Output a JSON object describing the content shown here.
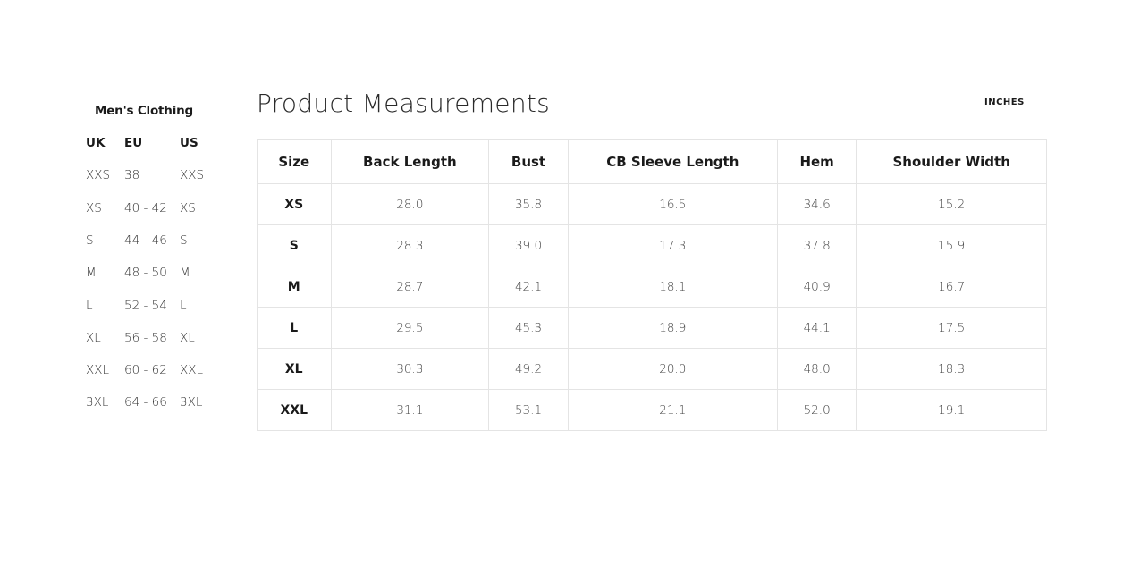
{
  "sidebar": {
    "title": "Men's Clothing",
    "headers": [
      "UK",
      "EU",
      "US"
    ],
    "rows": [
      [
        "XXS",
        "38",
        "XXS"
      ],
      [
        "XS",
        "40 - 42",
        "XS"
      ],
      [
        "S",
        "44 - 46",
        "S"
      ],
      [
        "M",
        "48 - 50",
        "M"
      ],
      [
        "L",
        "52 - 54",
        "L"
      ],
      [
        "XL",
        "56 - 58",
        "XL"
      ],
      [
        "XXL",
        "60 - 62",
        "XXL"
      ],
      [
        "3XL",
        "64 - 66",
        "3XL"
      ]
    ]
  },
  "main": {
    "title": "Product Measurements",
    "unit": "INCHES",
    "headers": [
      "Size",
      "Back Length",
      "Bust",
      "CB Sleeve Length",
      "Hem",
      "Shoulder Width"
    ],
    "rows": [
      [
        "XS",
        "28.0",
        "35.8",
        "16.5",
        "34.6",
        "15.2"
      ],
      [
        "S",
        "28.3",
        "39.0",
        "17.3",
        "37.8",
        "15.9"
      ],
      [
        "M",
        "28.7",
        "42.1",
        "18.1",
        "40.9",
        "16.7"
      ],
      [
        "L",
        "29.5",
        "45.3",
        "18.9",
        "44.1",
        "17.5"
      ],
      [
        "XL",
        "30.3",
        "49.2",
        "20.0",
        "48.0",
        "18.3"
      ],
      [
        "XXL",
        "31.1",
        "53.1",
        "21.1",
        "52.0",
        "19.1"
      ]
    ]
  }
}
